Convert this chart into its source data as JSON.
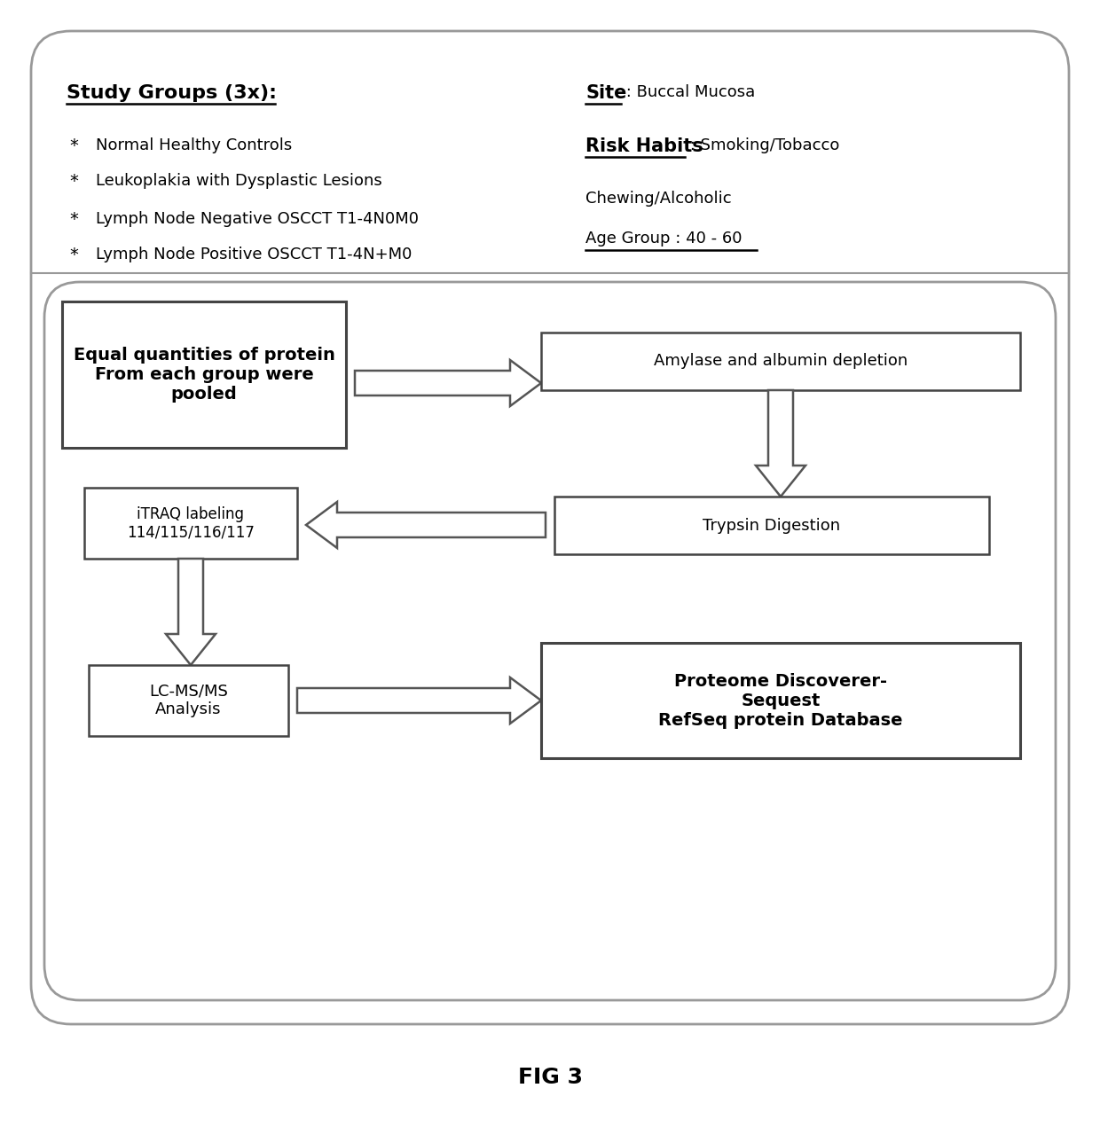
{
  "fig_label": "FIG 3",
  "top_section": {
    "study_groups_title": "Study Groups (3x):",
    "study_groups_items": [
      "Normal Healthy Controls",
      "Leukoplakia with Dysplastic Lesions",
      "Lymph Node Negative OSCCT T1-4N0M0",
      "Lymph Node Positive OSCCT T1-4N+M0"
    ],
    "site_label": "Site",
    "site_value": " : Buccal Mucosa",
    "risk_label": "Risk Habits",
    "risk_value": " : Smoking/Tobacco",
    "chewing": "Chewing/Alcoholic",
    "age_group": "Age Group : 40 - 60"
  },
  "flow_section": {
    "box1_text": "Equal quantities of protein\nFrom each group were\npooled",
    "box2_text": "Amylase and albumin depletion",
    "box3_text": "iTRAQ labeling\n114/115/116/117",
    "box4_text": "Trypsin Digestion",
    "box5_text": "LC-MS/MS\nAnalysis",
    "box6_text": "Proteome Discoverer-\nSequest\nRefSeq protein Database"
  }
}
